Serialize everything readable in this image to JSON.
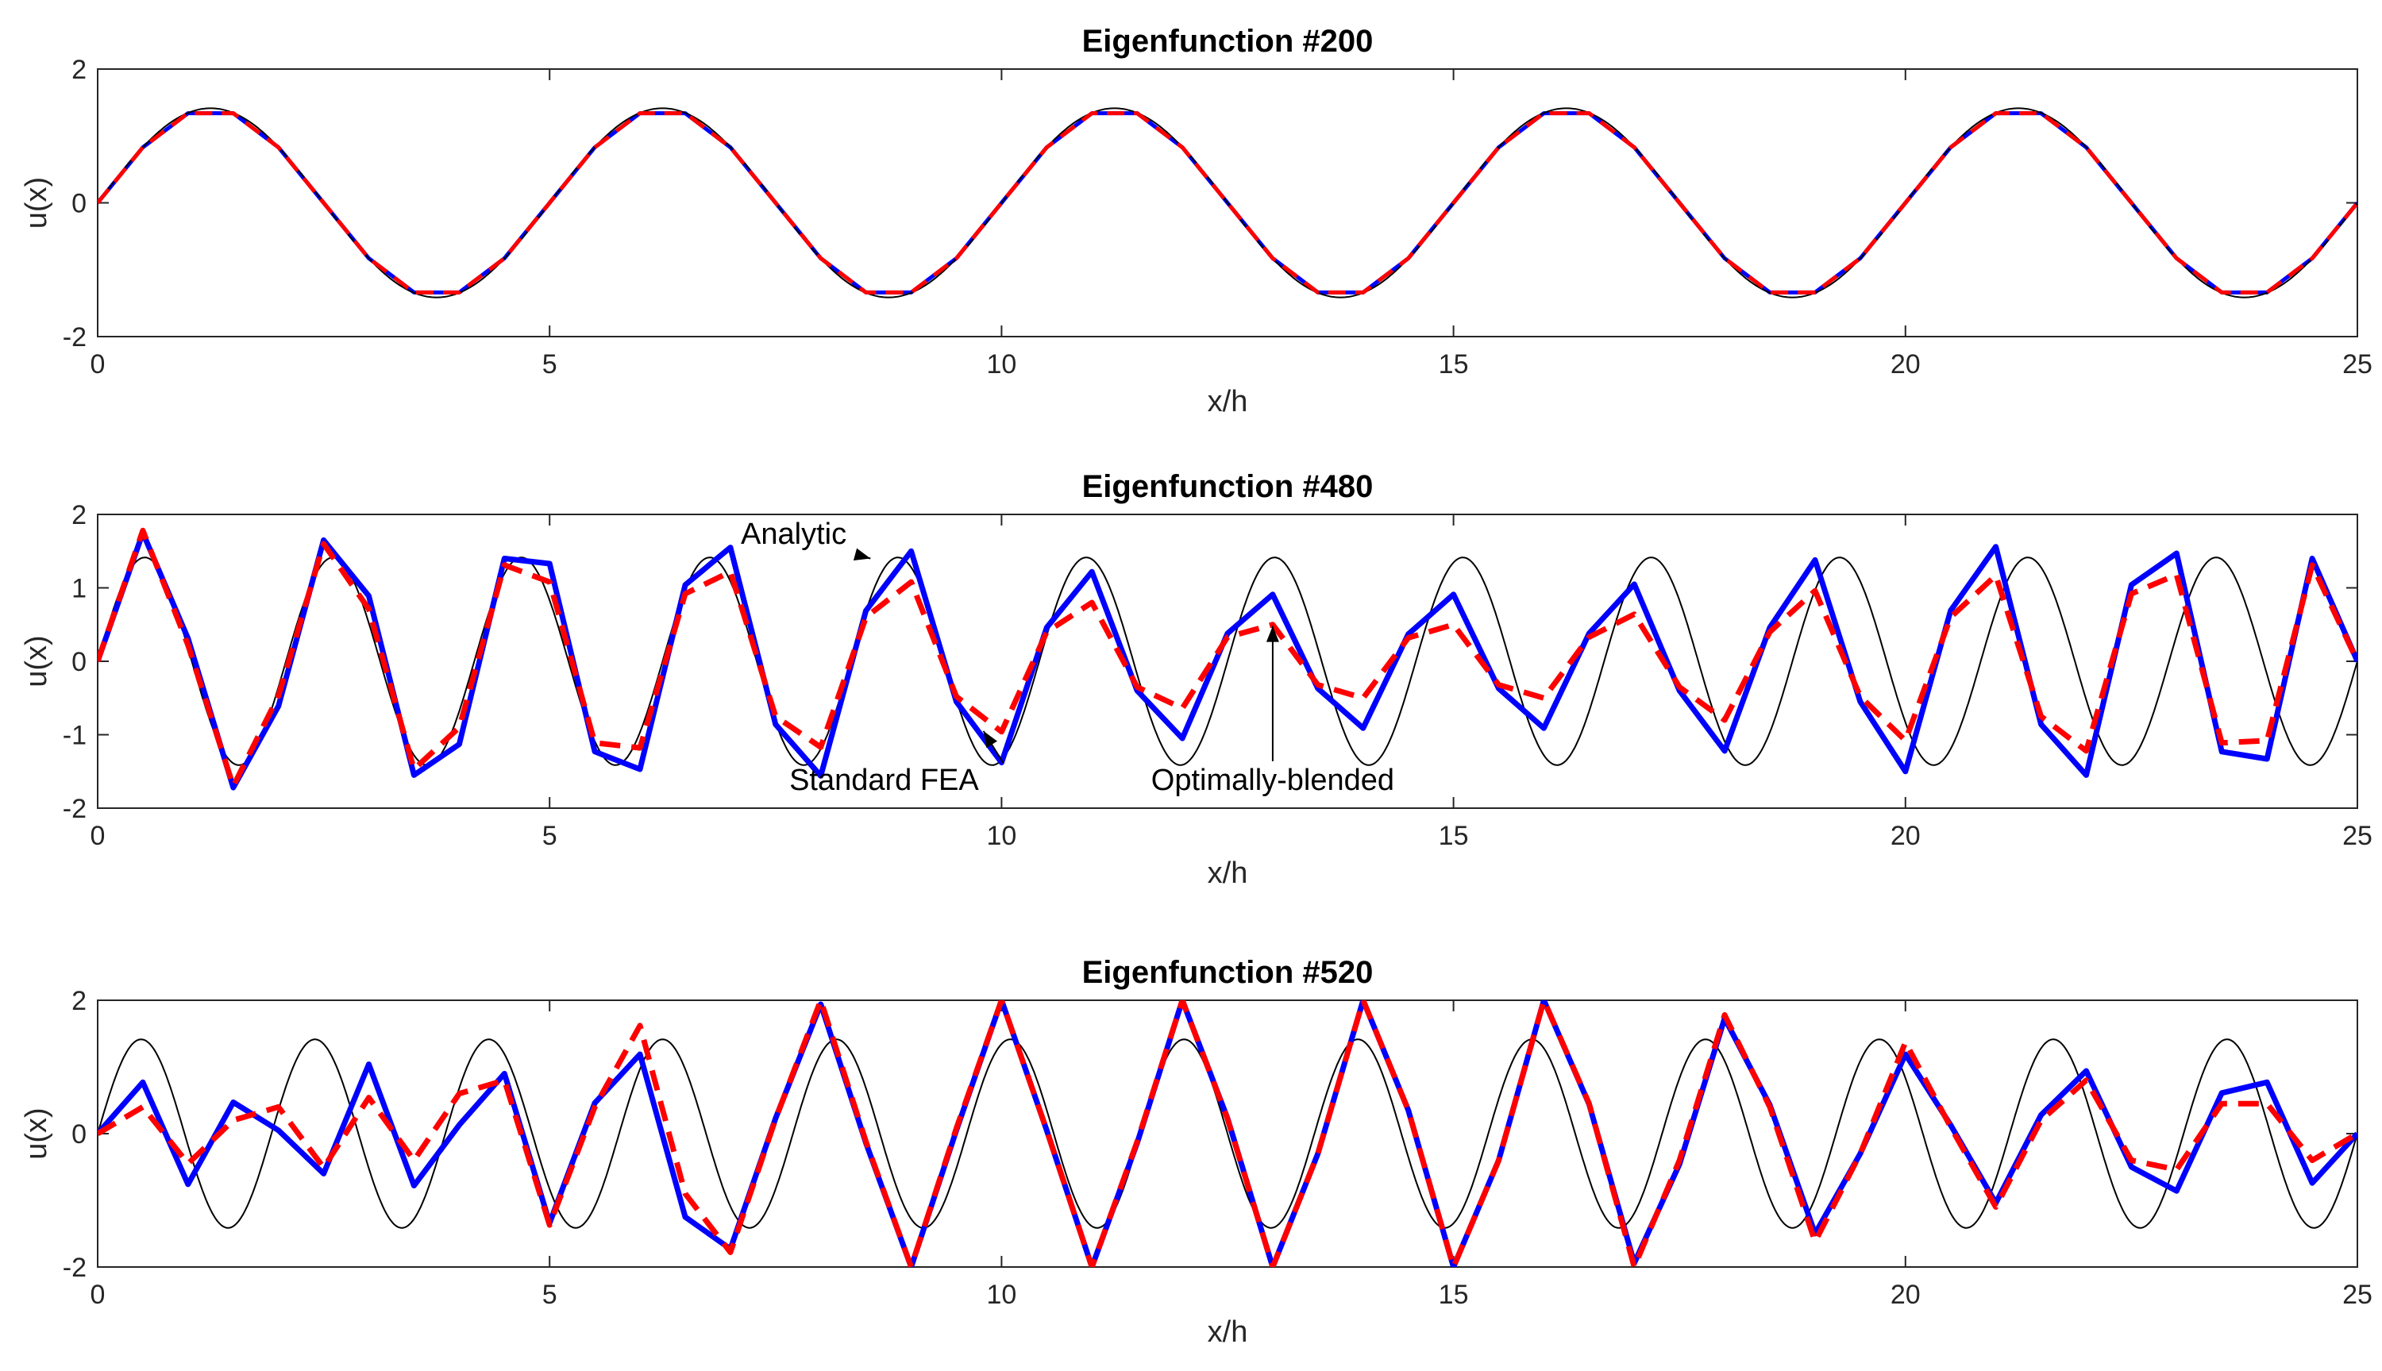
{
  "chart_data": [
    {
      "type": "line",
      "title": "Eigenfunction #200",
      "xlabel": "x/h",
      "ylabel": "u(x)",
      "xlim": [
        0,
        25
      ],
      "ylim": [
        -2,
        2
      ],
      "xticks": [
        "0",
        "5",
        "10",
        "15",
        "20",
        "25"
      ],
      "yticks": [
        "-2",
        "0",
        "2"
      ],
      "grid": false,
      "curves": {
        "analytic": {
          "amplitude": 1.414,
          "period": 5.0
        },
        "fea_x": [
          0,
          0.5,
          1,
          1.5,
          2,
          2.5,
          3,
          3.5,
          4,
          4.5,
          5,
          5.5,
          6,
          6.5,
          7,
          7.5,
          8,
          8.5,
          9,
          9.5,
          10,
          10.5,
          11,
          11.5,
          12,
          12.5,
          13,
          13.5,
          14,
          14.5,
          15,
          15.5,
          16,
          16.5,
          17,
          17.5,
          18,
          18.5,
          19,
          19.5,
          20,
          20.5,
          21,
          21.5,
          22,
          22.5,
          23,
          23.5,
          24,
          24.5,
          25
        ],
        "fea_y": [
          0,
          0.83,
          1.34,
          1.34,
          0.83,
          0,
          -0.83,
          -1.34,
          -1.34,
          -0.83,
          0,
          0.83,
          1.34,
          1.34,
          0.83,
          0,
          -0.83,
          -1.34,
          -1.34,
          -0.83,
          0,
          0.83,
          1.34,
          1.34,
          0.83,
          0,
          -0.83,
          -1.34,
          -1.34,
          -0.83,
          0,
          0.83,
          1.34,
          1.34,
          0.83,
          0,
          -0.83,
          -1.34,
          -1.34,
          -0.83,
          0,
          0.83,
          1.34,
          1.34,
          0.83,
          0,
          -0.83,
          -1.34,
          -1.34,
          -0.83,
          0
        ],
        "blended_x": [
          0,
          0.5,
          1,
          1.5,
          2,
          2.5,
          3,
          3.5,
          4,
          4.5,
          5,
          5.5,
          6,
          6.5,
          7,
          7.5,
          8,
          8.5,
          9,
          9.5,
          10,
          10.5,
          11,
          11.5,
          12,
          12.5,
          13,
          13.5,
          14,
          14.5,
          15,
          15.5,
          16,
          16.5,
          17,
          17.5,
          18,
          18.5,
          19,
          19.5,
          20,
          20.5,
          21,
          21.5,
          22,
          22.5,
          23,
          23.5,
          24,
          24.5,
          25
        ],
        "blended_y": [
          0,
          0.83,
          1.34,
          1.34,
          0.83,
          0,
          -0.83,
          -1.34,
          -1.34,
          -0.83,
          0,
          0.83,
          1.34,
          1.34,
          0.83,
          0,
          -0.83,
          -1.34,
          -1.34,
          -0.83,
          0,
          0.83,
          1.34,
          1.34,
          0.83,
          0,
          -0.83,
          -1.34,
          -1.34,
          -0.83,
          0,
          0.83,
          1.34,
          1.34,
          0.83,
          0,
          -0.83,
          -1.34,
          -1.34,
          -0.83,
          0,
          0.83,
          1.34,
          1.34,
          0.83,
          0,
          -0.83,
          -1.34,
          -1.34,
          -0.83,
          0
        ]
      },
      "annotations": []
    },
    {
      "type": "line",
      "title": "Eigenfunction #480",
      "xlabel": "x/h",
      "ylabel": "u(x)",
      "xlim": [
        0,
        25
      ],
      "ylim": [
        -2,
        2
      ],
      "xticks": [
        "0",
        "5",
        "10",
        "15",
        "20",
        "25"
      ],
      "yticks": [
        "-2",
        "-1",
        "0",
        "1",
        "2"
      ],
      "grid": false,
      "curves": {
        "analytic": {
          "amplitude": 1.414,
          "period": 2.0833
        },
        "fea_x": [
          0,
          0.5,
          1,
          1.5,
          2,
          2.5,
          3,
          3.5,
          4,
          4.5,
          5,
          5.5,
          6,
          6.5,
          7,
          7.5,
          8,
          8.5,
          9,
          9.5,
          10,
          10.5,
          11,
          11.5,
          12,
          12.5,
          13,
          13.5,
          14,
          14.5,
          15,
          15.5,
          16,
          16.5,
          17,
          17.5,
          18,
          18.5,
          19,
          19.5,
          20,
          20.5,
          21,
          21.5,
          22,
          22.5,
          23,
          23.5,
          24,
          24.5,
          25
        ],
        "fea_y": [
          0,
          1.75,
          0.31,
          -1.72,
          -0.61,
          1.65,
          0.89,
          -1.55,
          -1.13,
          1.4,
          1.33,
          -1.23,
          -1.47,
          1.04,
          1.55,
          -0.86,
          -1.56,
          0.69,
          1.5,
          -0.55,
          -1.38,
          0.46,
          1.22,
          -0.4,
          -1.05,
          0.38,
          0.91,
          -0.37,
          -0.91,
          0.37,
          0.91,
          -0.37,
          -0.91,
          0.38,
          1.05,
          -0.4,
          -1.22,
          0.46,
          1.38,
          -0.55,
          -1.5,
          0.69,
          1.56,
          -0.86,
          -1.55,
          1.04,
          1.47,
          -1.23,
          -1.33,
          1.4,
          0
        ],
        "blended_x": [
          0,
          0.5,
          1,
          1.5,
          2,
          2.5,
          3,
          3.5,
          4,
          4.5,
          5,
          5.5,
          6,
          6.5,
          7,
          7.5,
          8,
          8.5,
          9,
          9.5,
          10,
          10.5,
          11,
          11.5,
          12,
          12.5,
          13,
          13.5,
          14,
          14.5,
          15,
          15.5,
          16,
          16.5,
          17,
          17.5,
          18,
          18.5,
          19,
          19.5,
          20,
          20.5,
          21,
          21.5,
          22,
          22.5,
          23,
          23.5,
          24,
          24.5,
          25
        ],
        "blended_y": [
          0,
          1.78,
          0.22,
          -1.7,
          -0.47,
          1.6,
          0.71,
          -1.47,
          -0.9,
          1.31,
          1.08,
          -1.11,
          -1.18,
          0.92,
          1.22,
          -0.75,
          -1.17,
          0.6,
          1.08,
          -0.48,
          -0.96,
          0.4,
          0.8,
          -0.35,
          -0.64,
          0.33,
          0.5,
          -0.32,
          -0.5,
          0.32,
          0.5,
          -0.32,
          -0.5,
          0.33,
          0.64,
          -0.35,
          -0.8,
          0.4,
          0.96,
          -0.48,
          -1.08,
          0.6,
          1.17,
          -0.75,
          -1.22,
          0.92,
          1.18,
          -1.11,
          -1.08,
          1.31,
          0
        ]
      },
      "annotations": [
        {
          "text": "Analytic",
          "x": 7.7,
          "y": 1.6,
          "ax": 8.55,
          "ay": 1.4,
          "anchor": "middle"
        },
        {
          "text": "Standard FEA",
          "x": 8.7,
          "y": -1.75,
          "ax": 9.8,
          "ay": -0.95,
          "anchor": "middle"
        },
        {
          "text": "Optimally-blended",
          "x": 13.0,
          "y": -1.75,
          "ax": 13.0,
          "ay": 0.48,
          "anchor": "middle"
        }
      ]
    },
    {
      "type": "line",
      "title": "Eigenfunction #520",
      "xlabel": "x/h",
      "ylabel": "u(x)",
      "xlim": [
        0,
        25
      ],
      "ylim": [
        -2,
        2
      ],
      "xticks": [
        "0",
        "5",
        "10",
        "15",
        "20",
        "25"
      ],
      "yticks": [
        "-2",
        "0",
        "2"
      ],
      "grid": false,
      "curves": {
        "analytic": {
          "amplitude": 1.414,
          "period": 1.9231
        },
        "fea_x": [
          0,
          0.5,
          1,
          1.5,
          2,
          2.5,
          3,
          3.5,
          4,
          4.5,
          5,
          5.5,
          6,
          6.5,
          7,
          7.5,
          8,
          8.5,
          9,
          9.5,
          10,
          10.5,
          11,
          11.5,
          12,
          12.5,
          13,
          13.5,
          14,
          14.5,
          15,
          15.5,
          16,
          16.5,
          17,
          17.5,
          18,
          18.5,
          19,
          19.5,
          20,
          20.5,
          21,
          21.5,
          22,
          22.5,
          23,
          23.5,
          24,
          24.5,
          25
        ],
        "fea_y": [
          0,
          0.77,
          -0.76,
          0.47,
          0.05,
          -0.6,
          1.04,
          -0.78,
          0.13,
          0.9,
          -1.34,
          0.46,
          1.19,
          -1.25,
          -1.73,
          0.23,
          1.94,
          -0.14,
          -2.0,
          0.05,
          2.0,
          0.05,
          -2.0,
          -0.14,
          2.0,
          0.23,
          -2.0,
          -0.3,
          2.0,
          0.35,
          -2.0,
          -0.4,
          2.0,
          0.44,
          -1.94,
          -0.46,
          1.73,
          0.43,
          -1.5,
          -0.3,
          1.19,
          0.13,
          -1.04,
          0.28,
          0.94,
          -0.5,
          -0.86,
          0.61,
          0.77,
          -0.74,
          0
        ],
        "blended_x": [
          0,
          0.5,
          1,
          1.5,
          2,
          2.5,
          3,
          3.5,
          4,
          4.5,
          5,
          5.5,
          6,
          6.5,
          7,
          7.5,
          8,
          8.5,
          9,
          9.5,
          10,
          10.5,
          11,
          11.5,
          12,
          12.5,
          13,
          13.5,
          14,
          14.5,
          15,
          15.5,
          16,
          16.5,
          17,
          17.5,
          18,
          18.5,
          19,
          19.5,
          20,
          20.5,
          21,
          21.5,
          22,
          22.5,
          23,
          23.5,
          24,
          24.5,
          25
        ],
        "blended_y": [
          0,
          0.4,
          -0.45,
          0.2,
          0.4,
          -0.51,
          0.54,
          -0.4,
          0.6,
          0.8,
          -1.37,
          0.4,
          1.62,
          -0.9,
          -1.78,
          0.22,
          2.0,
          -0.12,
          -2.0,
          0.08,
          2.0,
          0.05,
          -2.0,
          -0.12,
          2.0,
          0.22,
          -2.0,
          -0.3,
          2.0,
          0.35,
          -2.0,
          -0.4,
          2.0,
          0.45,
          -2.0,
          -0.4,
          1.78,
          0.4,
          -1.62,
          -0.3,
          1.37,
          0.1,
          -1.1,
          0.2,
          0.8,
          -0.4,
          -0.54,
          0.45,
          0.45,
          -0.4,
          0
        ]
      },
      "annotations": []
    }
  ],
  "colors": {
    "analytic": "#000000",
    "fea": "#0000ff",
    "blended": "#ff0000"
  }
}
